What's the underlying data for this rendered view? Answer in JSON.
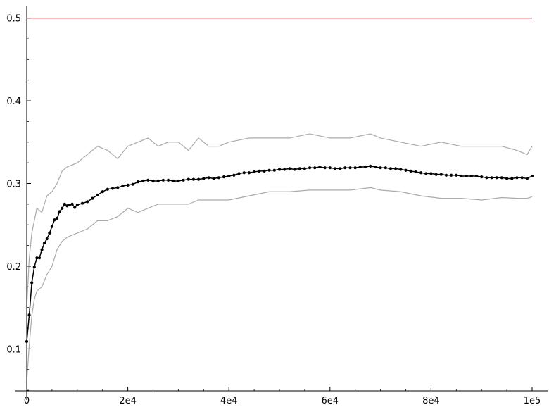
{
  "chart_data": {
    "type": "line",
    "title": "",
    "xlabel": "",
    "ylabel": "",
    "xlim": [
      0,
      100000
    ],
    "ylim": [
      0.045,
      0.515
    ],
    "grid": false,
    "x_ticks": [
      {
        "value": 0,
        "label": "0"
      },
      {
        "value": 20000,
        "label": "2e4"
      },
      {
        "value": 40000,
        "label": "4e4"
      },
      {
        "value": 60000,
        "label": "6e4"
      },
      {
        "value": 80000,
        "label": "8e4"
      },
      {
        "value": 100000,
        "label": "1e5"
      }
    ],
    "y_ticks": [
      {
        "value": 0.1,
        "label": "0.1"
      },
      {
        "value": 0.2,
        "label": "0.2"
      },
      {
        "value": 0.3,
        "label": "0.3"
      },
      {
        "value": 0.4,
        "label": "0.4"
      },
      {
        "value": 0.5,
        "label": "0.5"
      }
    ],
    "reference_line": {
      "y": 0.5,
      "color": "#ff0000"
    },
    "series": [
      {
        "role": "upper_band",
        "color": "#aaaaaa",
        "x": [
          0,
          500,
          1000,
          1500,
          2000,
          3000,
          4000,
          5000,
          6000,
          7000,
          8000,
          10000,
          12000,
          14000,
          16000,
          18000,
          20000,
          22000,
          24000,
          26000,
          28000,
          30000,
          32000,
          34000,
          36000,
          38000,
          40000,
          44000,
          48000,
          52000,
          56000,
          60000,
          64000,
          68000,
          70000,
          74000,
          78000,
          82000,
          86000,
          90000,
          94000,
          97000,
          99000,
          100000
        ],
        "values": [
          0.15,
          0.21,
          0.24,
          0.255,
          0.27,
          0.265,
          0.285,
          0.29,
          0.3,
          0.315,
          0.32,
          0.325,
          0.335,
          0.345,
          0.34,
          0.33,
          0.345,
          0.35,
          0.355,
          0.345,
          0.35,
          0.35,
          0.34,
          0.355,
          0.345,
          0.345,
          0.35,
          0.355,
          0.355,
          0.355,
          0.36,
          0.355,
          0.355,
          0.36,
          0.355,
          0.35,
          0.345,
          0.35,
          0.345,
          0.345,
          0.345,
          0.34,
          0.335,
          0.345
        ]
      },
      {
        "role": "lower_band",
        "color": "#aaaaaa",
        "x": [
          0,
          500,
          1000,
          1500,
          2000,
          3000,
          4000,
          5000,
          6000,
          7000,
          8000,
          10000,
          12000,
          14000,
          16000,
          18000,
          20000,
          22000,
          24000,
          26000,
          28000,
          30000,
          32000,
          34000,
          36000,
          38000,
          40000,
          44000,
          48000,
          52000,
          56000,
          60000,
          64000,
          68000,
          70000,
          74000,
          78000,
          82000,
          86000,
          90000,
          94000,
          97000,
          99000,
          100000
        ],
        "values": [
          0.06,
          0.105,
          0.14,
          0.16,
          0.17,
          0.175,
          0.19,
          0.2,
          0.22,
          0.23,
          0.235,
          0.24,
          0.245,
          0.255,
          0.255,
          0.26,
          0.27,
          0.265,
          0.27,
          0.275,
          0.275,
          0.275,
          0.275,
          0.28,
          0.28,
          0.28,
          0.28,
          0.285,
          0.29,
          0.29,
          0.292,
          0.292,
          0.292,
          0.295,
          0.292,
          0.29,
          0.285,
          0.282,
          0.282,
          0.28,
          0.283,
          0.282,
          0.282,
          0.284
        ]
      },
      {
        "role": "mean",
        "color": "#000000",
        "markers": true,
        "x": [
          0,
          500,
          1000,
          1500,
          2000,
          2500,
          3000,
          3500,
          4000,
          4500,
          5000,
          5500,
          6000,
          6500,
          7000,
          7500,
          8000,
          8500,
          9000,
          9500,
          10000,
          11000,
          12000,
          13000,
          14000,
          15000,
          16000,
          17000,
          18000,
          19000,
          20000,
          21000,
          22000,
          23000,
          24000,
          25000,
          26000,
          27000,
          28000,
          29000,
          30000,
          31000,
          32000,
          33000,
          34000,
          35000,
          36000,
          37000,
          38000,
          39000,
          40000,
          41000,
          42000,
          43000,
          44000,
          45000,
          46000,
          47000,
          48000,
          49000,
          50000,
          51000,
          52000,
          53000,
          54000,
          55000,
          56000,
          57000,
          58000,
          59000,
          60000,
          61000,
          62000,
          63000,
          64000,
          65000,
          66000,
          67000,
          68000,
          69000,
          70000,
          71000,
          72000,
          73000,
          74000,
          75000,
          76000,
          77000,
          78000,
          79000,
          80000,
          81000,
          82000,
          83000,
          84000,
          85000,
          86000,
          87000,
          88000,
          89000,
          90000,
          91000,
          92000,
          93000,
          94000,
          95000,
          96000,
          97000,
          98000,
          99000,
          100000
        ],
        "values": [
          0.109,
          0.141,
          0.18,
          0.199,
          0.21,
          0.21,
          0.22,
          0.228,
          0.233,
          0.24,
          0.248,
          0.256,
          0.258,
          0.266,
          0.27,
          0.275,
          0.273,
          0.274,
          0.275,
          0.271,
          0.274,
          0.276,
          0.278,
          0.282,
          0.286,
          0.29,
          0.293,
          0.294,
          0.295,
          0.297,
          0.298,
          0.299,
          0.302,
          0.303,
          0.304,
          0.303,
          0.303,
          0.304,
          0.304,
          0.303,
          0.303,
          0.304,
          0.305,
          0.305,
          0.305,
          0.306,
          0.307,
          0.306,
          0.307,
          0.308,
          0.309,
          0.31,
          0.312,
          0.313,
          0.313,
          0.314,
          0.315,
          0.315,
          0.316,
          0.316,
          0.317,
          0.317,
          0.318,
          0.317,
          0.318,
          0.318,
          0.319,
          0.319,
          0.32,
          0.319,
          0.319,
          0.318,
          0.318,
          0.319,
          0.319,
          0.319,
          0.32,
          0.32,
          0.321,
          0.32,
          0.319,
          0.319,
          0.318,
          0.318,
          0.317,
          0.316,
          0.315,
          0.314,
          0.313,
          0.312,
          0.312,
          0.311,
          0.311,
          0.31,
          0.31,
          0.31,
          0.309,
          0.309,
          0.309,
          0.309,
          0.308,
          0.307,
          0.307,
          0.307,
          0.307,
          0.306,
          0.306,
          0.307,
          0.307,
          0.306,
          0.309
        ]
      }
    ]
  }
}
